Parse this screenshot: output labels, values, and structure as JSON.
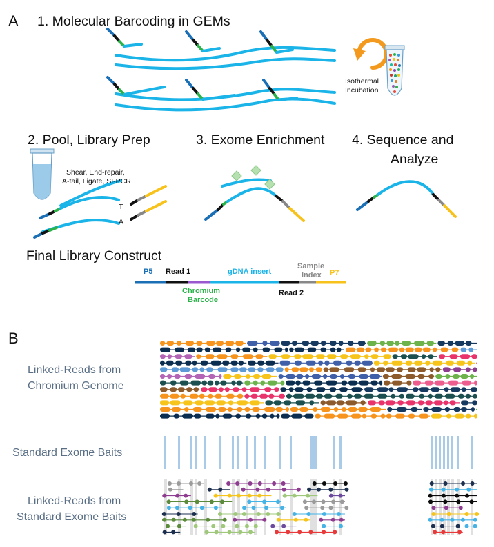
{
  "panel_a": {
    "letter": "A",
    "step1_title": "1. Molecular Barcoding in GEMs",
    "incubation_label_line1": "Isothermal",
    "incubation_label_line2": "Incubation",
    "step2_title": "2. Pool, Library Prep",
    "step2_ops": "Shear, End-repair,",
    "step2_ops2": "A-tail, Ligate, SI-PCR",
    "base_t": "T",
    "base_a": "A",
    "step3_title": "3. Exome Enrichment",
    "step4_title_line1": "4. Sequence and",
    "step4_title_line2": "Analyze",
    "construct_title": "Final Library Construct",
    "construct": {
      "p5": "P5",
      "read1": "Read 1",
      "gdna": "gDNA insert",
      "sample_index_line1": "Sample",
      "sample_index_line2": "Index",
      "p7": "P7",
      "barcode_line1": "Chromium",
      "barcode_line2": "Barcode",
      "read2": "Read 2"
    }
  },
  "panel_b": {
    "letter": "B",
    "linked_genome_line1": "Linked-Reads from",
    "linked_genome_line2": "Chromium Genome",
    "baits_label": "Standard Exome Baits",
    "linked_exome_line1": "Linked-Reads from",
    "linked_exome_line2": "Standard Exome Baits"
  },
  "colors": {
    "dna": "#1ab4e8",
    "adapter_blue": "#1a6fb5",
    "read_black": "#111111",
    "barcode_green": "#2bb34a",
    "index_gray": "#888888",
    "p7_yellow": "#f7c21b",
    "barcode_purple": "#9b59d0",
    "bait_blue": "#a9cbe8",
    "incubation_orange": "#f39a1e",
    "label_gray_blue": "#5a6f86"
  }
}
